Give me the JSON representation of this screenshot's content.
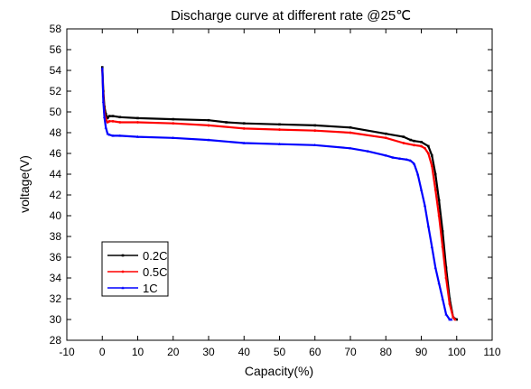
{
  "chart_data": {
    "type": "line",
    "title": "Discharge curve at different rate @25℃",
    "xlabel": "Capacity(%)",
    "ylabel": "voltage(V)",
    "xlim": [
      -10,
      110
    ],
    "ylim": [
      28,
      58
    ],
    "xticks": [
      -10,
      0,
      10,
      20,
      30,
      40,
      50,
      60,
      70,
      80,
      90,
      100,
      110
    ],
    "yticks": [
      28,
      30,
      32,
      34,
      36,
      38,
      40,
      42,
      44,
      46,
      48,
      50,
      52,
      54,
      56,
      58
    ],
    "grid": false,
    "legend_position": "bottom-left",
    "series": [
      {
        "name": "0.2C",
        "color": "#000000",
        "marker": "square",
        "x": [
          0,
          0.3,
          0.6,
          1.0,
          1.5,
          2,
          3,
          5,
          10,
          20,
          30,
          35,
          40,
          50,
          60,
          70,
          80,
          85,
          87,
          88,
          90,
          92,
          93,
          94,
          95,
          96,
          97,
          98,
          99,
          100
        ],
        "y": [
          54.3,
          52.0,
          50.5,
          49.8,
          49.4,
          49.6,
          49.6,
          49.5,
          49.4,
          49.3,
          49.2,
          49.0,
          48.9,
          48.8,
          48.7,
          48.5,
          47.9,
          47.6,
          47.3,
          47.2,
          47.1,
          46.7,
          45.8,
          44.0,
          41.5,
          38.5,
          35.0,
          32.0,
          30.2,
          30.0
        ]
      },
      {
        "name": "0.5C",
        "color": "#ff0000",
        "marker": "circle",
        "x": [
          0,
          0.3,
          0.6,
          1.0,
          1.5,
          2,
          3,
          5,
          10,
          20,
          30,
          40,
          50,
          60,
          70,
          80,
          85,
          88,
          90,
          91,
          92,
          93,
          94,
          95,
          96,
          97,
          98,
          99,
          99.5
        ],
        "y": [
          54.0,
          51.5,
          50.0,
          49.3,
          49.0,
          49.1,
          49.1,
          49.0,
          49.0,
          48.9,
          48.7,
          48.4,
          48.3,
          48.2,
          48.0,
          47.5,
          47.0,
          46.8,
          46.7,
          46.5,
          46.0,
          44.8,
          42.5,
          40.0,
          37.0,
          34.0,
          31.5,
          30.2,
          30.0
        ]
      },
      {
        "name": "1C",
        "color": "#0000ff",
        "marker": "triangle",
        "x": [
          0,
          0.3,
          0.6,
          1.0,
          1.5,
          2,
          3,
          5,
          10,
          20,
          30,
          40,
          50,
          60,
          70,
          75,
          80,
          82,
          84,
          86,
          87,
          88,
          89,
          90,
          91,
          92,
          93,
          94,
          95,
          96,
          97,
          98,
          98.5
        ],
        "y": [
          54.2,
          51.0,
          49.5,
          48.5,
          47.9,
          47.8,
          47.7,
          47.7,
          47.6,
          47.5,
          47.3,
          47.0,
          46.9,
          46.8,
          46.5,
          46.2,
          45.8,
          45.6,
          45.5,
          45.4,
          45.3,
          45.0,
          44.0,
          42.5,
          41.0,
          39.0,
          37.0,
          35.0,
          33.5,
          32.0,
          30.5,
          30.0,
          30.0
        ]
      }
    ]
  }
}
